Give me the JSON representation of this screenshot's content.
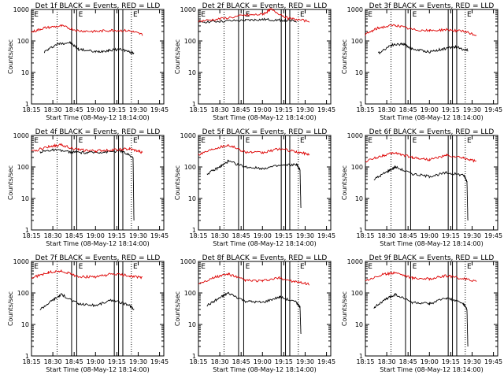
{
  "chart_data": [
    {
      "type": "line",
      "title": "Det 1f BLACK = Events, RED = LLD",
      "xlabel": "Start Time (08-May-12 18:14:00)",
      "ylabel": "Counts/sec",
      "yscale": "log",
      "ylim": [
        1,
        1000
      ],
      "x_ticks": [
        "18:15",
        "18:30",
        "18:45",
        "19:00",
        "19:15",
        "19:30",
        "19:45"
      ],
      "y_ticks": [
        "1",
        "10",
        "100",
        "1000"
      ],
      "series": [
        {
          "name": "Events",
          "color": "#000000",
          "values": [
            [
              18.4,
              45
            ],
            [
              18.55,
              80
            ],
            [
              18.7,
              90
            ],
            [
              18.8,
              55
            ],
            [
              19.0,
              45
            ],
            [
              19.15,
              50
            ],
            [
              19.3,
              55
            ],
            [
              19.45,
              40
            ]
          ]
        },
        {
          "name": "LLD",
          "color": "#dd0000",
          "values": [
            [
              18.25,
              190
            ],
            [
              18.4,
              260
            ],
            [
              18.6,
              300
            ],
            [
              18.8,
              210
            ],
            [
              19.0,
              200
            ],
            [
              19.2,
              220
            ],
            [
              19.4,
              210
            ],
            [
              19.55,
              160
            ]
          ]
        }
      ]
    },
    {
      "type": "line",
      "title": "Det 2f BLACK = Events, RED = LLD",
      "xlabel": "Start Time (08-May-12 18:14:00)",
      "ylabel": "Counts/sec",
      "yscale": "log",
      "ylim": [
        1,
        1000
      ],
      "x_ticks": [
        "18:15",
        "18:30",
        "18:45",
        "19:00",
        "19:15",
        "19:30",
        "19:45"
      ],
      "y_ticks": [
        "1",
        "10",
        "100",
        "1000"
      ],
      "series": [
        {
          "name": "Events",
          "color": "#000000",
          "values": [
            [
              18.25,
              400
            ],
            [
              18.5,
              420
            ],
            [
              18.8,
              450
            ],
            [
              19.0,
              480
            ],
            [
              19.2,
              460
            ],
            [
              19.4,
              420
            ]
          ]
        },
        {
          "name": "LLD",
          "color": "#dd0000",
          "values": [
            [
              18.25,
              420
            ],
            [
              18.5,
              500
            ],
            [
              18.8,
              650
            ],
            [
              19.0,
              700
            ],
            [
              19.1,
              1000
            ],
            [
              19.3,
              520
            ],
            [
              19.55,
              420
            ]
          ]
        }
      ]
    },
    {
      "type": "line",
      "title": "Det 3f BLACK = Events, RED = LLD",
      "xlabel": "Start Time (08-May-12 18:14:00)",
      "ylabel": "Counts/sec",
      "yscale": "log",
      "ylim": [
        1,
        1000
      ],
      "x_ticks": [
        "18:15",
        "18:30",
        "18:45",
        "19:00",
        "19:15",
        "19:30",
        "19:45"
      ],
      "y_ticks": [
        "1",
        "10",
        "100",
        "1000"
      ],
      "series": [
        {
          "name": "Events",
          "color": "#000000",
          "values": [
            [
              18.4,
              40
            ],
            [
              18.55,
              75
            ],
            [
              18.7,
              80
            ],
            [
              18.8,
              55
            ],
            [
              19.0,
              45
            ],
            [
              19.15,
              55
            ],
            [
              19.3,
              65
            ],
            [
              19.45,
              50
            ]
          ]
        },
        {
          "name": "LLD",
          "color": "#dd0000",
          "values": [
            [
              18.25,
              160
            ],
            [
              18.4,
              260
            ],
            [
              18.6,
              320
            ],
            [
              18.8,
              230
            ],
            [
              19.0,
              210
            ],
            [
              19.2,
              230
            ],
            [
              19.4,
              200
            ],
            [
              19.55,
              150
            ]
          ]
        }
      ]
    },
    {
      "type": "line",
      "title": "Det 4f BLACK = Events, RED = LLD",
      "xlabel": "Start Time (08-May-12 18:14:00)",
      "ylabel": "Counts/sec",
      "yscale": "log",
      "ylim": [
        1,
        1000
      ],
      "x_ticks": [
        "18:15",
        "18:30",
        "18:45",
        "19:00",
        "19:15",
        "19:30",
        "19:45"
      ],
      "y_ticks": [
        "1",
        "10",
        "100",
        "1000"
      ],
      "series": [
        {
          "name": "Events",
          "color": "#000000",
          "values": [
            [
              18.35,
              300
            ],
            [
              18.5,
              350
            ],
            [
              18.7,
              300
            ],
            [
              18.9,
              280
            ],
            [
              19.1,
              300
            ],
            [
              19.3,
              320
            ],
            [
              19.44,
              200
            ],
            [
              19.45,
              2
            ]
          ]
        },
        {
          "name": "LLD",
          "color": "#dd0000",
          "values": [
            [
              18.25,
              300
            ],
            [
              18.45,
              450
            ],
            [
              18.6,
              500
            ],
            [
              18.8,
              350
            ],
            [
              19.0,
              320
            ],
            [
              19.2,
              350
            ],
            [
              19.4,
              370
            ],
            [
              19.55,
              290
            ]
          ]
        }
      ]
    },
    {
      "type": "line",
      "title": "Det 5f BLACK = Events, RED = LLD",
      "xlabel": "Start Time (08-May-12 18:14:00)",
      "ylabel": "Counts/sec",
      "yscale": "log",
      "ylim": [
        1,
        1000
      ],
      "x_ticks": [
        "18:15",
        "18:30",
        "18:45",
        "19:00",
        "19:15",
        "19:30",
        "19:45"
      ],
      "y_ticks": [
        "1",
        "10",
        "100",
        "1000"
      ],
      "series": [
        {
          "name": "Events",
          "color": "#000000",
          "values": [
            [
              18.35,
              60
            ],
            [
              18.5,
              100
            ],
            [
              18.6,
              150
            ],
            [
              18.8,
              100
            ],
            [
              19.0,
              90
            ],
            [
              19.2,
              110
            ],
            [
              19.4,
              120
            ],
            [
              19.44,
              80
            ],
            [
              19.45,
              5
            ]
          ]
        },
        {
          "name": "LLD",
          "color": "#dd0000",
          "values": [
            [
              18.25,
              250
            ],
            [
              18.45,
              400
            ],
            [
              18.6,
              500
            ],
            [
              18.8,
              300
            ],
            [
              19.0,
              280
            ],
            [
              19.2,
              380
            ],
            [
              19.4,
              300
            ],
            [
              19.55,
              250
            ]
          ]
        }
      ]
    },
    {
      "type": "line",
      "title": "Det 6f BLACK = Events, RED = LLD",
      "xlabel": "Start Time (08-May-12 18:14:00)",
      "ylabel": "Counts/sec",
      "yscale": "log",
      "ylim": [
        1,
        1000
      ],
      "x_ticks": [
        "18:15",
        "18:30",
        "18:45",
        "19:00",
        "19:15",
        "19:30",
        "19:45"
      ],
      "y_ticks": [
        "1",
        "10",
        "100",
        "1000"
      ],
      "series": [
        {
          "name": "Events",
          "color": "#000000",
          "values": [
            [
              18.35,
              40
            ],
            [
              18.5,
              70
            ],
            [
              18.6,
              100
            ],
            [
              18.8,
              60
            ],
            [
              19.0,
              50
            ],
            [
              19.2,
              65
            ],
            [
              19.4,
              55
            ],
            [
              19.44,
              35
            ],
            [
              19.45,
              2
            ]
          ]
        },
        {
          "name": "LLD",
          "color": "#dd0000",
          "values": [
            [
              18.25,
              150
            ],
            [
              18.45,
              230
            ],
            [
              18.6,
              280
            ],
            [
              18.8,
              200
            ],
            [
              19.0,
              170
            ],
            [
              19.2,
              230
            ],
            [
              19.4,
              190
            ],
            [
              19.55,
              150
            ]
          ]
        }
      ]
    },
    {
      "type": "line",
      "title": "Det 7f BLACK = Events, RED = LLD",
      "xlabel": "Start Time (08-May-12 18:14:00)",
      "ylabel": "Counts/sec",
      "yscale": "log",
      "ylim": [
        1,
        1000
      ],
      "x_ticks": [
        "18:15",
        "18:30",
        "18:45",
        "19:00",
        "19:15",
        "19:30",
        "19:45"
      ],
      "y_ticks": [
        "1",
        "10",
        "100",
        "1000"
      ],
      "series": [
        {
          "name": "Events",
          "color": "#000000",
          "values": [
            [
              18.35,
              30
            ],
            [
              18.5,
              60
            ],
            [
              18.6,
              90
            ],
            [
              18.8,
              45
            ],
            [
              19.0,
              40
            ],
            [
              19.2,
              60
            ],
            [
              19.4,
              40
            ],
            [
              19.45,
              30
            ]
          ]
        },
        {
          "name": "LLD",
          "color": "#dd0000",
          "values": [
            [
              18.25,
              300
            ],
            [
              18.45,
              450
            ],
            [
              18.6,
              500
            ],
            [
              18.8,
              330
            ],
            [
              19.0,
              320
            ],
            [
              19.2,
              400
            ],
            [
              19.4,
              350
            ],
            [
              19.55,
              300
            ]
          ]
        }
      ]
    },
    {
      "type": "line",
      "title": "Det 8f BLACK = Events, RED = LLD",
      "xlabel": "Start Time (08-May-12 18:14:00)",
      "ylabel": "Counts/sec",
      "yscale": "log",
      "ylim": [
        1,
        1000
      ],
      "x_ticks": [
        "18:15",
        "18:30",
        "18:45",
        "19:00",
        "19:15",
        "19:30",
        "19:45"
      ],
      "y_ticks": [
        "1",
        "10",
        "100",
        "1000"
      ],
      "series": [
        {
          "name": "Events",
          "color": "#000000",
          "values": [
            [
              18.35,
              40
            ],
            [
              18.5,
              70
            ],
            [
              18.6,
              100
            ],
            [
              18.8,
              55
            ],
            [
              19.0,
              50
            ],
            [
              19.2,
              75
            ],
            [
              19.4,
              50
            ],
            [
              19.44,
              35
            ],
            [
              19.45,
              5
            ]
          ]
        },
        {
          "name": "LLD",
          "color": "#dd0000",
          "values": [
            [
              18.25,
              200
            ],
            [
              18.45,
              320
            ],
            [
              18.6,
              400
            ],
            [
              18.8,
              250
            ],
            [
              19.0,
              240
            ],
            [
              19.2,
              300
            ],
            [
              19.4,
              220
            ],
            [
              19.55,
              190
            ]
          ]
        }
      ]
    },
    {
      "type": "line",
      "title": "Det 9f BLACK = Events, RED = LLD",
      "xlabel": "Start Time (08-May-12 18:14:00)",
      "ylabel": "Counts/sec",
      "yscale": "log",
      "ylim": [
        1,
        1000
      ],
      "x_ticks": [
        "18:15",
        "18:30",
        "18:45",
        "19:00",
        "19:15",
        "19:30",
        "19:45"
      ],
      "y_ticks": [
        "1",
        "10",
        "100",
        "1000"
      ],
      "series": [
        {
          "name": "Events",
          "color": "#000000",
          "values": [
            [
              18.35,
              35
            ],
            [
              18.5,
              65
            ],
            [
              18.6,
              90
            ],
            [
              18.8,
              50
            ],
            [
              19.0,
              45
            ],
            [
              19.2,
              70
            ],
            [
              19.4,
              45
            ],
            [
              19.44,
              30
            ],
            [
              19.45,
              2
            ]
          ]
        },
        {
          "name": "LLD",
          "color": "#dd0000",
          "values": [
            [
              18.25,
              250
            ],
            [
              18.45,
              380
            ],
            [
              18.6,
              450
            ],
            [
              18.8,
              300
            ],
            [
              19.0,
              280
            ],
            [
              19.2,
              350
            ],
            [
              19.4,
              280
            ],
            [
              19.55,
              240
            ]
          ]
        }
      ]
    }
  ],
  "markers": {
    "solid_lines_time": [
      18.72,
      18.78,
      19.22,
      19.27,
      19.32
    ],
    "dotted_lines_time": [
      18.55,
      19.42
    ],
    "labels": [
      "E",
      "E",
      "E"
    ]
  }
}
